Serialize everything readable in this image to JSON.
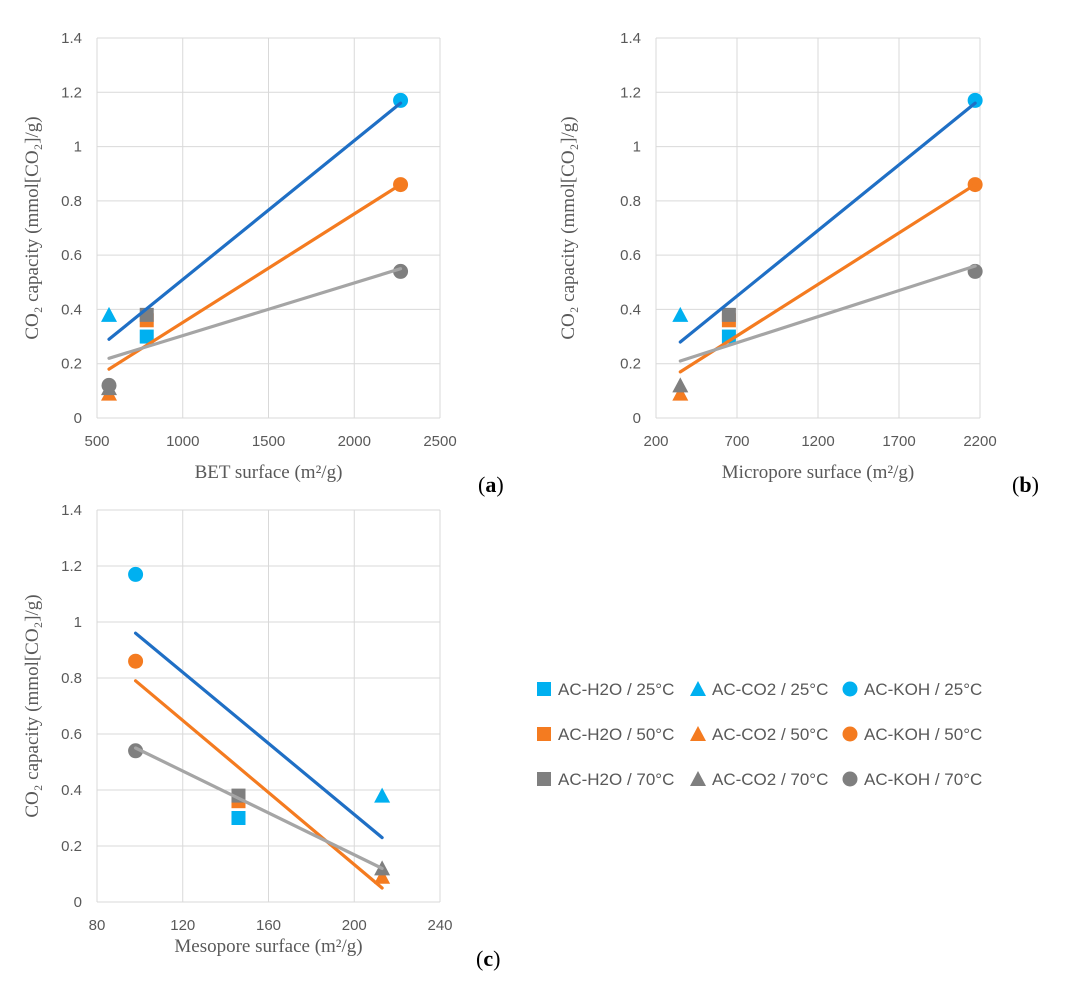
{
  "colors": {
    "T25": "#00B0F0",
    "T50": "#F47B20",
    "T70": "#7F7F7F",
    "trend_25": "#1F6FC5",
    "trend_50": "#F47B20",
    "trend_70": "#A5A5A5",
    "grid": "#D9D9D9",
    "text": "#595959"
  },
  "legend": {
    "items": [
      {
        "label": "AC-H2O / 25°C",
        "marker": "square",
        "color_key": "T25"
      },
      {
        "label": "AC-CO2 / 25°C",
        "marker": "triangle",
        "color_key": "T25"
      },
      {
        "label": "AC-KOH / 25°C",
        "marker": "circle",
        "color_key": "T25"
      },
      {
        "label": "AC-H2O / 50°C",
        "marker": "square",
        "color_key": "T50"
      },
      {
        "label": "AC-CO2 / 50°C",
        "marker": "triangle",
        "color_key": "T50"
      },
      {
        "label": "AC-KOH / 50°C",
        "marker": "circle",
        "color_key": "T50"
      },
      {
        "label": "AC-H2O / 70°C",
        "marker": "square",
        "color_key": "T70"
      },
      {
        "label": "AC-CO2 / 70°C",
        "marker": "triangle",
        "color_key": "T70"
      },
      {
        "label": "AC-KOH / 70°C",
        "marker": "circle",
        "color_key": "T70"
      }
    ]
  },
  "chart_data": [
    {
      "type": "scatter",
      "id": "a",
      "panel_label_open": "(",
      "panel_label": "a",
      "panel_label_close": ")",
      "xlabel": "BET surface (m²/g)",
      "ylabel": "CO₂ capacity (mmol[CO₂]/g)",
      "xlim": [
        500,
        2500
      ],
      "ylim": [
        0,
        1.4
      ],
      "xticks": [
        500,
        1000,
        1500,
        2000,
        2500
      ],
      "yticks": [
        0,
        0.2,
        0.4,
        0.6,
        0.8,
        1,
        1.2,
        1.4
      ],
      "series": [
        {
          "name": "AC-H2O / 25°C",
          "marker": "square",
          "color_key": "T25",
          "points": [
            [
              790,
              0.3
            ]
          ]
        },
        {
          "name": "AC-CO2 / 25°C",
          "marker": "triangle",
          "color_key": "T25",
          "points": [
            [
              570,
              0.38
            ]
          ]
        },
        {
          "name": "AC-KOH / 25°C",
          "marker": "circle",
          "color_key": "T25",
          "points": [
            [
              2270,
              1.17
            ]
          ]
        },
        {
          "name": "AC-H2O / 50°C",
          "marker": "square",
          "color_key": "T50",
          "points": [
            [
              790,
              0.36
            ]
          ]
        },
        {
          "name": "AC-CO2 / 50°C",
          "marker": "triangle",
          "color_key": "T50",
          "points": [
            [
              570,
              0.09
            ]
          ]
        },
        {
          "name": "AC-KOH / 50°C",
          "marker": "circle",
          "color_key": "T50",
          "points": [
            [
              2270,
              0.86
            ]
          ]
        },
        {
          "name": "AC-H2O / 70°C",
          "marker": "square",
          "color_key": "T70",
          "points": [
            [
              790,
              0.38
            ]
          ]
        },
        {
          "name": "AC-CO2 / 70°C",
          "marker": "triangle",
          "color_key": "T70",
          "points": [
            [
              570,
              0.11
            ]
          ]
        },
        {
          "name": "AC-KOH / 70°C",
          "marker": "circle",
          "color_key": "T70",
          "points": [
            [
              570,
              0.12
            ],
            [
              2270,
              0.54
            ]
          ]
        }
      ],
      "trendlines": [
        {
          "name": "25°C trend",
          "color_key": "trend_25",
          "from": [
            570,
            0.29
          ],
          "to": [
            2270,
            1.16
          ]
        },
        {
          "name": "50°C trend",
          "color_key": "trend_50",
          "from": [
            570,
            0.18
          ],
          "to": [
            2270,
            0.86
          ]
        },
        {
          "name": "70°C trend",
          "color_key": "trend_70",
          "from": [
            570,
            0.22
          ],
          "to": [
            2270,
            0.55
          ]
        }
      ]
    },
    {
      "type": "scatter",
      "id": "b",
      "panel_label_open": "(",
      "panel_label": "b",
      "panel_label_close": ")",
      "xlabel": "Micropore surface (m²/g)",
      "ylabel": "CO₂ capacity (mmol[CO₂]/g)",
      "xlim": [
        200,
        2200
      ],
      "ylim": [
        0,
        1.4
      ],
      "xticks": [
        200,
        700,
        1200,
        1700,
        2200
      ],
      "yticks": [
        0,
        0.2,
        0.4,
        0.6,
        0.8,
        1,
        1.2,
        1.4
      ],
      "series": [
        {
          "name": "AC-H2O / 25°C",
          "marker": "square",
          "color_key": "T25",
          "points": [
            [
              650,
              0.3
            ]
          ]
        },
        {
          "name": "AC-CO2 / 25°C",
          "marker": "triangle",
          "color_key": "T25",
          "points": [
            [
              350,
              0.38
            ]
          ]
        },
        {
          "name": "AC-KOH / 25°C",
          "marker": "circle",
          "color_key": "T25",
          "points": [
            [
              2170,
              1.17
            ]
          ]
        },
        {
          "name": "AC-H2O / 50°C",
          "marker": "square",
          "color_key": "T50",
          "points": [
            [
              650,
              0.36
            ]
          ]
        },
        {
          "name": "AC-CO2 / 50°C",
          "marker": "triangle",
          "color_key": "T50",
          "points": [
            [
              350,
              0.09
            ]
          ]
        },
        {
          "name": "AC-KOH / 50°C",
          "marker": "circle",
          "color_key": "T50",
          "points": [
            [
              2170,
              0.86
            ]
          ]
        },
        {
          "name": "AC-H2O / 70°C",
          "marker": "square",
          "color_key": "T70",
          "points": [
            [
              650,
              0.38
            ]
          ]
        },
        {
          "name": "AC-CO2 / 70°C",
          "marker": "triangle",
          "color_key": "T70",
          "points": [
            [
              350,
              0.12
            ]
          ]
        },
        {
          "name": "AC-KOH / 70°C",
          "marker": "circle",
          "color_key": "T70",
          "points": [
            [
              2170,
              0.54
            ]
          ]
        }
      ],
      "trendlines": [
        {
          "name": "25°C trend",
          "color_key": "trend_25",
          "from": [
            350,
            0.28
          ],
          "to": [
            2170,
            1.16
          ]
        },
        {
          "name": "50°C trend",
          "color_key": "trend_50",
          "from": [
            350,
            0.17
          ],
          "to": [
            2170,
            0.86
          ]
        },
        {
          "name": "70°C trend",
          "color_key": "trend_70",
          "from": [
            350,
            0.21
          ],
          "to": [
            2170,
            0.56
          ]
        }
      ]
    },
    {
      "type": "scatter",
      "id": "c",
      "panel_label_open": "(",
      "panel_label": "c",
      "panel_label_close": ")",
      "xlabel": "Mesopore surface (m²/g)",
      "ylabel": "CO₂ capacity (mmol[CO₂]/g)",
      "xlim": [
        80,
        240
      ],
      "ylim": [
        0,
        1.4
      ],
      "xticks": [
        80,
        120,
        160,
        200,
        240
      ],
      "yticks": [
        0,
        0.2,
        0.4,
        0.6,
        0.8,
        1,
        1.2,
        1.4
      ],
      "series": [
        {
          "name": "AC-H2O / 25°C",
          "marker": "square",
          "color_key": "T25",
          "points": [
            [
              146,
              0.3
            ]
          ]
        },
        {
          "name": "AC-CO2 / 25°C",
          "marker": "triangle",
          "color_key": "T25",
          "points": [
            [
              213,
              0.38
            ]
          ]
        },
        {
          "name": "AC-KOH / 25°C",
          "marker": "circle",
          "color_key": "T25",
          "points": [
            [
              98,
              1.17
            ]
          ]
        },
        {
          "name": "AC-H2O / 50°C",
          "marker": "square",
          "color_key": "T50",
          "points": [
            [
              146,
              0.36
            ]
          ]
        },
        {
          "name": "AC-CO2 / 50°C",
          "marker": "triangle",
          "color_key": "T50",
          "points": [
            [
              213,
              0.09
            ]
          ]
        },
        {
          "name": "AC-KOH / 50°C",
          "marker": "circle",
          "color_key": "T50",
          "points": [
            [
              98,
              0.86
            ]
          ]
        },
        {
          "name": "AC-H2O / 70°C",
          "marker": "square",
          "color_key": "T70",
          "points": [
            [
              146,
              0.38
            ]
          ]
        },
        {
          "name": "AC-CO2 / 70°C",
          "marker": "triangle",
          "color_key": "T70",
          "points": [
            [
              213,
              0.12
            ]
          ]
        },
        {
          "name": "AC-KOH / 70°C",
          "marker": "circle",
          "color_key": "T70",
          "points": [
            [
              98,
              0.54
            ]
          ]
        }
      ],
      "trendlines": [
        {
          "name": "25°C trend",
          "color_key": "trend_25",
          "from": [
            98,
            0.96
          ],
          "to": [
            213,
            0.23
          ]
        },
        {
          "name": "50°C trend",
          "color_key": "trend_50",
          "from": [
            98,
            0.79
          ],
          "to": [
            213,
            0.05
          ]
        },
        {
          "name": "70°C trend",
          "color_key": "trend_70",
          "from": [
            98,
            0.55
          ],
          "to": [
            213,
            0.12
          ]
        }
      ]
    }
  ]
}
